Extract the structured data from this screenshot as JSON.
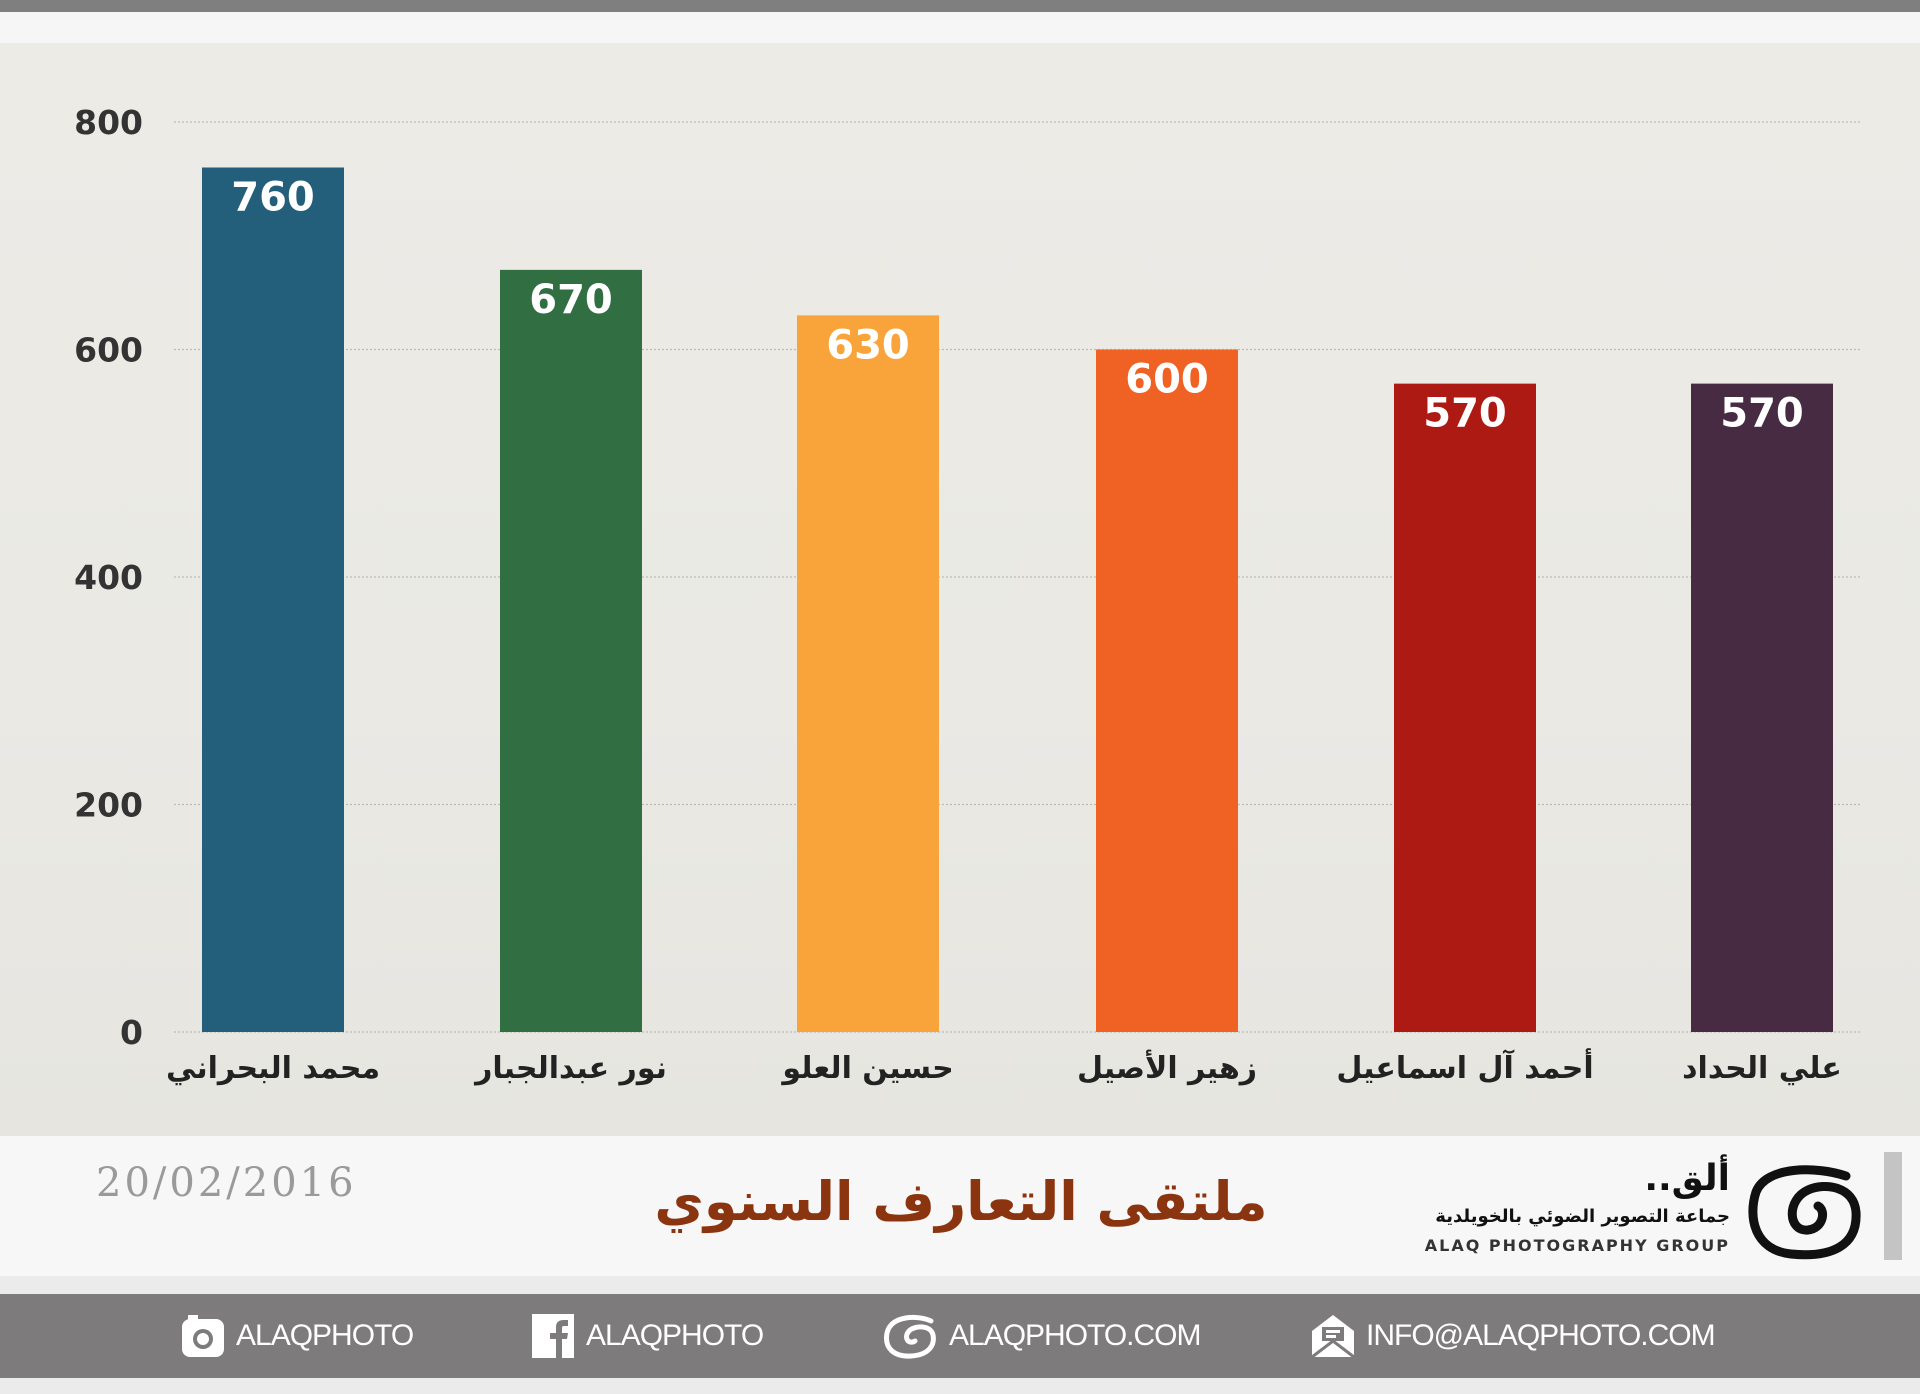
{
  "chart_data": {
    "type": "bar",
    "categories": [
      "محمد البحراني",
      "نور عبدالجبار",
      "حسين العلو",
      "زهير الأصيل",
      "أحمد آل اسماعيل",
      "علي الحداد"
    ],
    "values": [
      760,
      670,
      630,
      600,
      570,
      570
    ],
    "colors": [
      "#235e7a",
      "#316e42",
      "#f9a43b",
      "#ef6223",
      "#ac1a13",
      "#472b42"
    ],
    "yticks": [
      0,
      200,
      400,
      600,
      800
    ],
    "ylim": [
      0,
      800
    ],
    "grid": true,
    "title": "ملتقى التعارف السنوي",
    "xlabel": "",
    "ylabel": ""
  },
  "date": "20/02/2016",
  "logo": {
    "arabic_name": "ألق..",
    "arabic_sub": "جماعة التصوير الضوئي بالخويلدية",
    "english": "ALAQ PHOTOGRAPHY GROUP"
  },
  "footer": [
    {
      "icon": "instagram-icon",
      "label": "ALAQPHOTO"
    },
    {
      "icon": "facebook-icon",
      "label": "ALAQPHOTO"
    },
    {
      "icon": "website-icon",
      "label": "ALAQPHOTO.COM"
    },
    {
      "icon": "email-icon",
      "label": "INFO@ALAQPHOTO.COM"
    }
  ]
}
